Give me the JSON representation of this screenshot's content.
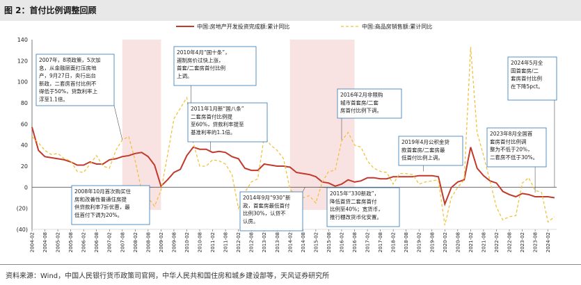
{
  "header": {
    "title": "图 2：首付比例调整回顾"
  },
  "footer": {
    "source": "资料来源：Wind，中国人民银行货币政策司官网，中华人民共和国住房和城乡建设部等，天风证券研究所"
  },
  "colors": {
    "series1": "#c0392b",
    "series2": "#f2c13a",
    "shade": "#f6d5d5",
    "annotation_border": "#2e75b6"
  },
  "chart_data": {
    "type": "line",
    "ylim": [
      -40,
      140
    ],
    "yticks": [
      -40,
      -20,
      0,
      20,
      40,
      60,
      80,
      100,
      120,
      140
    ],
    "ytick_labels": [
      "(40)",
      "(20)",
      "0",
      "20",
      "40",
      "60",
      "80",
      "100",
      "120",
      "140"
    ],
    "grid": false,
    "legend_position": "top-right",
    "xticks": [
      "2004-02",
      "2004-08",
      "2005-02",
      "2005-08",
      "2006-02",
      "2006-08",
      "2007-02",
      "2007-08",
      "2008-02",
      "2008-08",
      "2009-02",
      "2009-08",
      "2010-02",
      "2010-08",
      "2011-02",
      "2011-08",
      "2012-02",
      "2012-08",
      "2013-02",
      "2013-08",
      "2014-02",
      "2014-08",
      "2015-02",
      "2015-08",
      "2016-02",
      "2016-08",
      "2017-02",
      "2017-08",
      "2018-02",
      "2018-08",
      "2019-02",
      "2019-08",
      "2020-02",
      "2020-08",
      "2021-02",
      "2021-08",
      "2022-02",
      "2022-08",
      "2023-02",
      "2023-08",
      "2024-02"
    ],
    "shaded_ranges": [
      [
        "2007-08",
        "2009-02"
      ],
      [
        "2014-02",
        "2016-08"
      ]
    ],
    "series": [
      {
        "name": "中国:房地产开发投资完成额:累计同比",
        "style": "solid",
        "points": [
          [
            "2004-02",
            57
          ],
          [
            "2004-05",
            35
          ],
          [
            "2004-08",
            29
          ],
          [
            "2004-11",
            28
          ],
          [
            "2005-02",
            27
          ],
          [
            "2005-05",
            26
          ],
          [
            "2005-08",
            24
          ],
          [
            "2005-11",
            21
          ],
          [
            "2006-02",
            21
          ],
          [
            "2006-05",
            24
          ],
          [
            "2006-08",
            22
          ],
          [
            "2006-11",
            22
          ],
          [
            "2007-02",
            26
          ],
          [
            "2007-05",
            27
          ],
          [
            "2007-08",
            29
          ],
          [
            "2007-11",
            30
          ],
          [
            "2008-02",
            32
          ],
          [
            "2008-05",
            33
          ],
          [
            "2008-08",
            29
          ],
          [
            "2008-11",
            21
          ],
          [
            "2009-02",
            1
          ],
          [
            "2009-05",
            7
          ],
          [
            "2009-08",
            14
          ],
          [
            "2009-11",
            17
          ],
          [
            "2010-02",
            30
          ],
          [
            "2010-05",
            38
          ],
          [
            "2010-08",
            36
          ],
          [
            "2010-11",
            36
          ],
          [
            "2011-02",
            33
          ],
          [
            "2011-05",
            34
          ],
          [
            "2011-08",
            33
          ],
          [
            "2011-11",
            29
          ],
          [
            "2012-02",
            27
          ],
          [
            "2012-05",
            18
          ],
          [
            "2012-08",
            16
          ],
          [
            "2012-11",
            16
          ],
          [
            "2013-02",
            22
          ],
          [
            "2013-05",
            21
          ],
          [
            "2013-08",
            20
          ],
          [
            "2013-11",
            20
          ],
          [
            "2014-02",
            19
          ],
          [
            "2014-05",
            14
          ],
          [
            "2014-08",
            13
          ],
          [
            "2014-11",
            12
          ],
          [
            "2015-02",
            10
          ],
          [
            "2015-05",
            5
          ],
          [
            "2015-08",
            4
          ],
          [
            "2015-11",
            1
          ],
          [
            "2016-02",
            3
          ],
          [
            "2016-05",
            7
          ],
          [
            "2016-08",
            5
          ],
          [
            "2016-11",
            6
          ],
          [
            "2017-02",
            9
          ],
          [
            "2017-05",
            9
          ],
          [
            "2017-08",
            8
          ],
          [
            "2017-11",
            8
          ],
          [
            "2018-02",
            10
          ],
          [
            "2018-05",
            10
          ],
          [
            "2018-08",
            10
          ],
          [
            "2018-11",
            10
          ],
          [
            "2019-02",
            11
          ],
          [
            "2019-05",
            11
          ],
          [
            "2019-08",
            11
          ],
          [
            "2019-11",
            10
          ],
          [
            "2020-02",
            -16
          ],
          [
            "2020-05",
            -0.3
          ],
          [
            "2020-08",
            5
          ],
          [
            "2020-11",
            7
          ],
          [
            "2021-02",
            38
          ],
          [
            "2021-05",
            18
          ],
          [
            "2021-08",
            11
          ],
          [
            "2021-11",
            6
          ],
          [
            "2022-02",
            4
          ],
          [
            "2022-05",
            -4
          ],
          [
            "2022-08",
            -7
          ],
          [
            "2022-11",
            -9
          ],
          [
            "2023-02",
            -6
          ],
          [
            "2023-05",
            -7
          ],
          [
            "2023-08",
            -9
          ],
          [
            "2023-11",
            -9
          ],
          [
            "2024-02",
            -9
          ],
          [
            "2024-05",
            -10
          ]
        ]
      },
      {
        "name": "中国:商品房销售额:累计同比",
        "style": "dashed",
        "points": [
          [
            "2004-02",
            48
          ],
          [
            "2004-05",
            42
          ],
          [
            "2004-08",
            35
          ],
          [
            "2004-11",
            31
          ],
          [
            "2005-02",
            32
          ],
          [
            "2005-05",
            27
          ],
          [
            "2005-08",
            25
          ],
          [
            "2005-11",
            15
          ],
          [
            "2006-02",
            14
          ],
          [
            "2006-05",
            22
          ],
          [
            "2006-08",
            30
          ],
          [
            "2006-11",
            20
          ],
          [
            "2007-02",
            18
          ],
          [
            "2007-05",
            35
          ],
          [
            "2007-08",
            45
          ],
          [
            "2007-11",
            48
          ],
          [
            "2008-02",
            25
          ],
          [
            "2008-05",
            -3
          ],
          [
            "2008-08",
            -10
          ],
          [
            "2008-11",
            -18
          ],
          [
            "2009-02",
            -3
          ],
          [
            "2009-05",
            30
          ],
          [
            "2009-08",
            65
          ],
          [
            "2009-11",
            75
          ],
          [
            "2010-02",
            85
          ],
          [
            "2010-05",
            42
          ],
          [
            "2010-08",
            20
          ],
          [
            "2010-11",
            20
          ],
          [
            "2011-02",
            26
          ],
          [
            "2011-05",
            25
          ],
          [
            "2011-08",
            22
          ],
          [
            "2011-11",
            12
          ],
          [
            "2012-02",
            -20
          ],
          [
            "2012-05",
            -5
          ],
          [
            "2012-08",
            5
          ],
          [
            "2012-11",
            8
          ],
          [
            "2013-02",
            48
          ],
          [
            "2013-05",
            40
          ],
          [
            "2013-08",
            35
          ],
          [
            "2013-11",
            27
          ],
          [
            "2014-02",
            -2
          ],
          [
            "2014-05",
            -8
          ],
          [
            "2014-08",
            -10
          ],
          [
            "2014-11",
            -8
          ],
          [
            "2015-02",
            -15
          ],
          [
            "2015-05",
            5
          ],
          [
            "2015-08",
            15
          ],
          [
            "2015-11",
            16
          ],
          [
            "2016-02",
            44
          ],
          [
            "2016-05",
            52
          ],
          [
            "2016-08",
            40
          ],
          [
            "2016-11",
            38
          ],
          [
            "2017-02",
            25
          ],
          [
            "2017-05",
            18
          ],
          [
            "2017-08",
            15
          ],
          [
            "2017-11",
            14
          ],
          [
            "2018-02",
            3
          ],
          [
            "2018-05",
            13
          ],
          [
            "2018-08",
            13
          ],
          [
            "2018-11",
            12
          ],
          [
            "2019-02",
            3
          ],
          [
            "2019-05",
            5
          ],
          [
            "2019-08",
            6
          ],
          [
            "2019-11",
            7
          ],
          [
            "2020-02",
            -36
          ],
          [
            "2020-05",
            -10
          ],
          [
            "2020-08",
            0
          ],
          [
            "2020-11",
            7
          ],
          [
            "2021-02",
            133
          ],
          [
            "2021-05",
            52
          ],
          [
            "2021-08",
            30
          ],
          [
            "2021-11",
            6
          ],
          [
            "2022-02",
            -19
          ],
          [
            "2022-05",
            -31
          ],
          [
            "2022-08",
            -28
          ],
          [
            "2022-11",
            -27
          ],
          [
            "2023-02",
            4
          ],
          [
            "2023-05",
            9
          ],
          [
            "2023-08",
            -3
          ],
          [
            "2023-11",
            -5
          ],
          [
            "2024-02",
            -33
          ],
          [
            "2024-05",
            -28
          ]
        ]
      }
    ],
    "annotations": [
      {
        "id": "a2007",
        "text": "2007年，8项政策，5次加息，从金融层面打压房地产，9月27日，央行出台新政，二套房首付比例不得低于50%，贷款利率上浮至1.1倍。",
        "lines": [
          "2007年，8项政策，5次加",
          "息，从金融层面打压房地",
          "产，9月27日，央行出台",
          "新政，二套房首付比例不",
          "得低于50%，贷款利率上",
          "浮至1.1倍。"
        ],
        "anchor": [
          "2007-08",
          45
        ]
      },
      {
        "id": "a2008",
        "text": "2008年10月首次购买住房和改善性普通住房提供贷款利率7折优惠，最低首付下调为20%。",
        "lines": [
          "2008年10月首次购买住",
          "房和改善性普通住房提",
          "供贷款利率7折优惠，最",
          "低首付下调为20%。"
        ],
        "anchor": [
          "2008-10",
          0
        ]
      },
      {
        "id": "a2010",
        "text": "2010年4月“国十条”，遏制房价过快上涨，首套/二套房首付比例上调。",
        "lines": [
          "2010年4月“国十条”，",
          "遏制房价过快上涨，",
          "首套/二套房首付比例",
          "上调。"
        ],
        "anchor": [
          "2010-04",
          60
        ]
      },
      {
        "id": "a2011",
        "text": "2011年1月新“国八条”二套房首付比例提至60%，贷款利率提至基准利率的1.1倍。",
        "lines": [
          "2011年1月新“国八条”",
          "二套房首付比例提",
          "至60%，贷款利率提至",
          "基准利率的1.1倍。"
        ],
        "anchor": [
          "2011-01",
          35
        ]
      },
      {
        "id": "a2014",
        "text": "2014年9月“930”新政，首套房最低首付比例30%，认贷不认房。",
        "lines": [
          "2014年9月“930”新",
          "政，首套房最低首付",
          "比例30%，认贷不",
          "认房。"
        ],
        "anchor": [
          "2014-09",
          0
        ]
      },
      {
        "id": "a2015",
        "text": "2015年“330新政”降低首贷二套房首付比例至40%；宽货币，推行棚改货币化安置。",
        "lines": [
          "2015年“330新政”，",
          "降低首贷二套房首付",
          "比例至40%；宽货币，",
          "推行棚改货币化安置。"
        ],
        "anchor": [
          "2015-03",
          0
        ]
      },
      {
        "id": "a2016",
        "text": "2016年2月非限购城市首套房/二套房首付比例下调。",
        "lines": [
          "2016年2月非限购",
          "城市首套房/二套",
          "房首付比例下调。"
        ],
        "anchor": [
          "2016-02",
          45
        ]
      },
      {
        "id": "a2019",
        "text": "2019年4月公积金贷款首套房/二套房最低首付比例上调。",
        "lines": [
          "2019年4月公积金贷",
          "款首套房/二套房最",
          "低首付比例上调。"
        ],
        "anchor": [
          "2019-04",
          15
        ]
      },
      {
        "id": "a2023",
        "text": "2023年8月全国首套房首付比例调整为不低于20%，二套房不低于30%。",
        "lines": [
          "2023年8月全国首",
          "套房首付比例调",
          "整为不低于20%，",
          "二套房不低于30%。"
        ],
        "anchor": [
          "2023-08",
          -5
        ]
      },
      {
        "id": "a2024",
        "text": "2024年5月全国首套房/二套房首付比例在下降5pct。",
        "lines": [
          "2024年5月全",
          "国首套房/二",
          "套房首付比例",
          "在下降5pct。"
        ],
        "anchor": [
          "2024-05",
          0
        ]
      }
    ]
  }
}
